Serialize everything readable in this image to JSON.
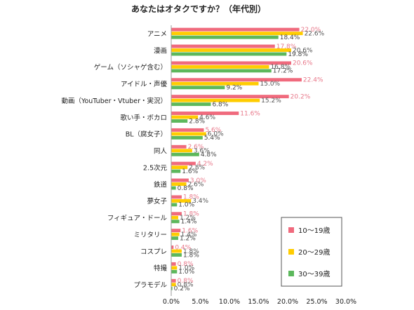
{
  "chart_data": {
    "type": "bar",
    "orientation": "horizontal",
    "title": "あなたはオタクですか？（年代別）",
    "xlabel": "",
    "ylabel": "",
    "xlim": [
      0,
      30
    ],
    "ticks": [
      "0.0%",
      "5.0%",
      "10.0%",
      "15.0%",
      "20.0%",
      "25.0%",
      "30.0%"
    ],
    "grid": false,
    "legend_position": "bottom-right",
    "categories": [
      "アニメ",
      "漫画",
      "ゲーム（ソシャゲ含む）",
      "アイドル・声優",
      "動画（YouTuber・Vtuber・実況）",
      "歌い手・ボカロ",
      "BL（腐女子）",
      "同人",
      "2.5次元",
      "鉄道",
      "夢女子",
      "フィギュア・ドール",
      "ミリタリー",
      "コスプレ",
      "特撮",
      "プラモデル"
    ],
    "series": [
      {
        "name": "10～19歳",
        "color": "#f06a7d",
        "values": [
          22.0,
          17.8,
          20.6,
          22.4,
          20.2,
          11.6,
          5.6,
          2.6,
          4.2,
          3.0,
          1.8,
          1.8,
          1.6,
          0.4,
          0.8,
          0.8
        ],
        "labels": [
          "22.0%",
          "17.8%",
          "20.6%",
          "22.4%",
          "20.2%",
          "11.6%",
          "5.6%",
          "2.6%",
          "4.2%",
          "3.0%",
          "1.8%",
          "1.8%",
          "1.6%",
          "0.4%",
          "0.8%",
          "0.8%"
        ]
      },
      {
        "name": "20～29歳",
        "color": "#ffcc00",
        "values": [
          22.6,
          20.6,
          16.8,
          15.0,
          15.2,
          4.6,
          6.0,
          3.6,
          2.8,
          2.6,
          3.4,
          1.2,
          1.4,
          1.8,
          1.0,
          0.8
        ],
        "labels": [
          "22.6%",
          "20.6%",
          "16.8%",
          "15.0%",
          "15.2%",
          "4.6%",
          "6.0%",
          "3.6%",
          "2.8%",
          "2.6%",
          "3.4%",
          "1.2%",
          "1.4%",
          "1.8%",
          "1.0%",
          "0.8%"
        ]
      },
      {
        "name": "30～39歳",
        "color": "#5cb85c",
        "values": [
          18.4,
          19.8,
          17.2,
          9.2,
          6.8,
          2.8,
          5.4,
          4.8,
          1.6,
          0.8,
          1.0,
          1.4,
          1.2,
          1.8,
          1.0,
          0.2
        ],
        "labels": [
          "18.4%",
          "19.8%",
          "17.2%",
          "9.2%",
          "6.8%",
          "2.8%",
          "5.4%",
          "4.8%",
          "1.6%",
          "0.8%",
          "1.0%",
          "1.4%",
          "1.2%",
          "1.8%",
          "1.0%",
          "0.2%"
        ]
      }
    ]
  }
}
